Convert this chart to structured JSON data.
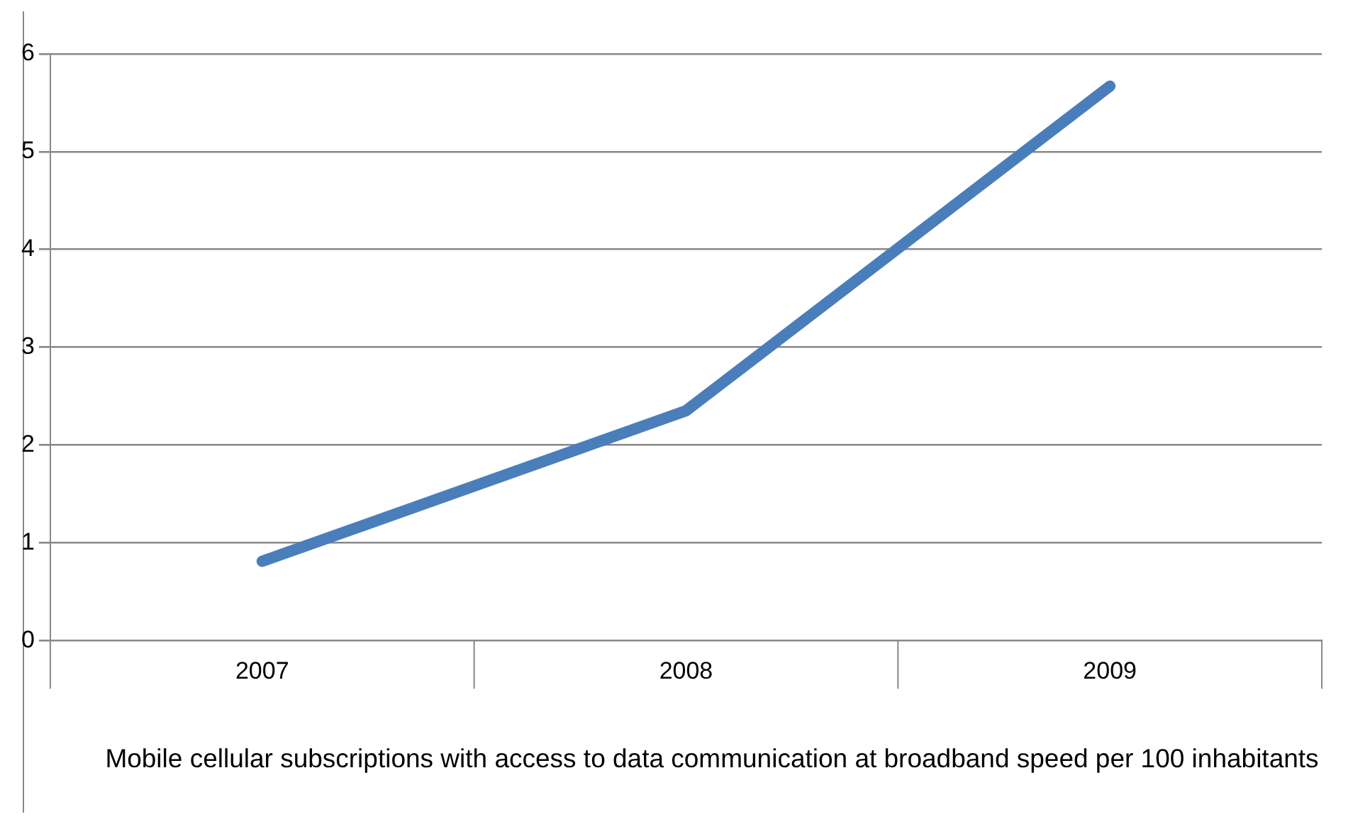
{
  "chart_data": {
    "type": "line",
    "xlabel": "Mobile cellular subscriptions with access to data communication at broadband speed per 100 inhabitants",
    "categories": [
      "2007",
      "2008",
      "2009"
    ],
    "series": [
      {
        "color": "#4a7ebb",
        "values": [
          0.81,
          2.35,
          5.67
        ]
      }
    ],
    "ylim": [
      0,
      6
    ],
    "yticks": [
      0,
      1,
      2,
      3,
      4,
      5,
      6
    ],
    "grid": "y",
    "legend": false,
    "marker": "none",
    "line_style": "solid"
  }
}
